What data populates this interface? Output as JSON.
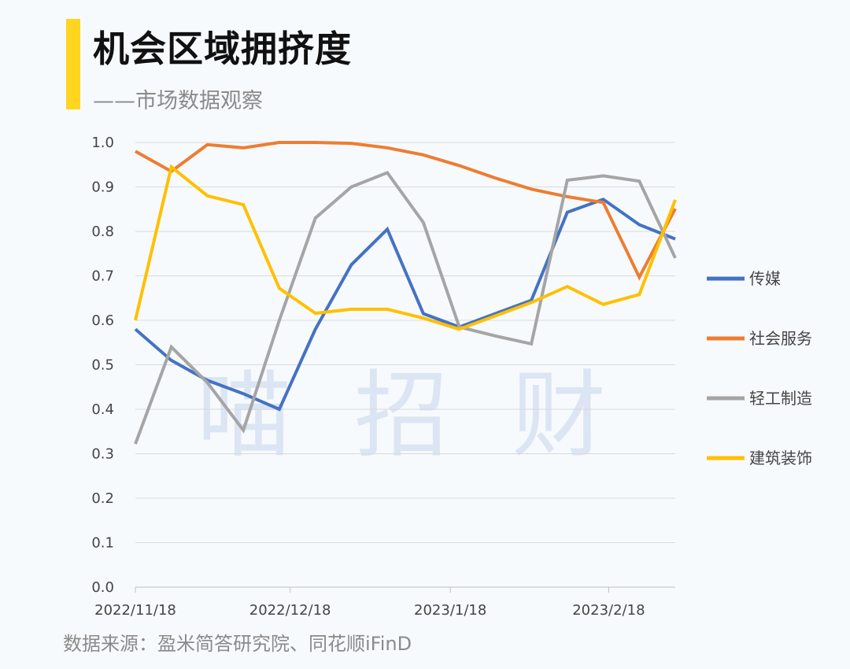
{
  "header": {
    "title": "机会区域拥挤度",
    "subtitle": "——市场数据观察"
  },
  "source": "数据来源：盈米简答研究院、同花顺iFinD",
  "watermark": "喵招财",
  "colors": {
    "accent": "#ffd51f",
    "grid": "#d9d9d9"
  },
  "chart_data": {
    "type": "line",
    "x": [
      "2022/11/18",
      "2022/11/25",
      "2022/12/2",
      "2022/12/9",
      "2022/12/16",
      "2022/12/23",
      "2022/12/30",
      "2023/1/6",
      "2023/1/13",
      "2023/1/20",
      "2023/1/27",
      "2023/2/3",
      "2023/2/10",
      "2023/2/17",
      "2023/2/24",
      "2023/3/3"
    ],
    "x_tick_labels": [
      "2022/11/18",
      "2022/12/18",
      "2023/1/18",
      "2023/2/18"
    ],
    "x_tick_positions": [
      0,
      4.3,
      8.75,
      13.15
    ],
    "ylim": [
      0,
      1.0
    ],
    "y_ticks": [
      "0.0",
      "0.1",
      "0.2",
      "0.3",
      "0.4",
      "0.5",
      "0.6",
      "0.7",
      "0.8",
      "0.9",
      "1.0"
    ],
    "grid": true,
    "legend_position": "right",
    "series": [
      {
        "name": "传媒",
        "color": "#4472c4",
        "values": [
          0.58,
          0.51,
          0.465,
          0.435,
          0.4,
          0.58,
          0.725,
          0.805,
          0.615,
          0.585,
          0.615,
          0.645,
          0.843,
          0.872,
          0.815,
          0.783
        ]
      },
      {
        "name": "社会服务",
        "color": "#ed7d31",
        "values": [
          0.98,
          0.935,
          0.995,
          0.988,
          1.0,
          1.0,
          0.998,
          0.988,
          0.972,
          0.948,
          0.92,
          0.895,
          0.878,
          0.865,
          0.697,
          0.851
        ]
      },
      {
        "name": "轻工制造",
        "color": "#a5a5a5",
        "values": [
          0.322,
          0.54,
          0.46,
          0.353,
          0.6,
          0.83,
          0.9,
          0.932,
          0.82,
          0.585,
          0.565,
          0.547,
          0.915,
          0.925,
          0.913,
          0.74
        ]
      },
      {
        "name": "建筑装饰",
        "color": "#ffc000",
        "values": [
          0.6,
          0.945,
          0.88,
          0.86,
          0.672,
          0.616,
          0.625,
          0.625,
          0.605,
          0.58,
          0.61,
          0.64,
          0.676,
          0.636,
          0.658,
          0.871
        ]
      }
    ]
  }
}
